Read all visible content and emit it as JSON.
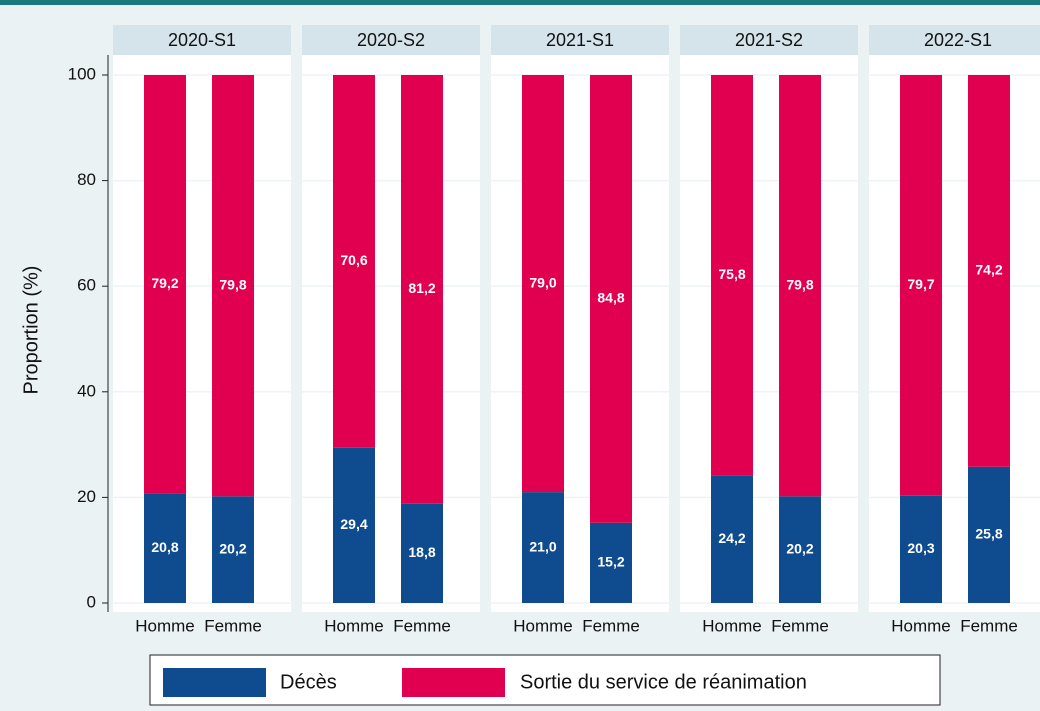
{
  "chart_data": {
    "type": "bar",
    "stacked": true,
    "ylabel": "Proportion (%)",
    "facets": [
      "2020-S1",
      "2020-S2",
      "2021-S1",
      "2021-S2",
      "2022-S1"
    ],
    "categories": [
      "Homme",
      "Femme"
    ],
    "series": [
      {
        "name": "Décès",
        "color": "#0f4c8f",
        "values": [
          [
            20.8,
            20.2
          ],
          [
            29.4,
            18.8
          ],
          [
            21.0,
            15.2
          ],
          [
            24.2,
            20.2
          ],
          [
            20.3,
            25.8
          ]
        ],
        "value_labels": [
          [
            "20,8",
            "20,2"
          ],
          [
            "29,4",
            "18,8"
          ],
          [
            "21,0",
            "15,2"
          ],
          [
            "24,2",
            "20,2"
          ],
          [
            "20,3",
            "25,8"
          ]
        ]
      },
      {
        "name": "Sortie du service de réanimation",
        "color": "#e0004f",
        "values": [
          [
            79.2,
            79.8
          ],
          [
            70.6,
            81.2
          ],
          [
            79.0,
            84.8
          ],
          [
            75.8,
            79.8
          ],
          [
            79.7,
            74.2
          ]
        ],
        "value_labels": [
          [
            "79,2",
            "79,8"
          ],
          [
            "70,6",
            "81,2"
          ],
          [
            "79,0",
            "84,8"
          ],
          [
            "75,8",
            "79,8"
          ],
          [
            "79,7",
            "74,2"
          ]
        ]
      }
    ],
    "ylim": [
      0,
      100
    ],
    "yticks": [
      0,
      20,
      40,
      60,
      80,
      100
    ],
    "grid": true,
    "legend": "bottom"
  }
}
